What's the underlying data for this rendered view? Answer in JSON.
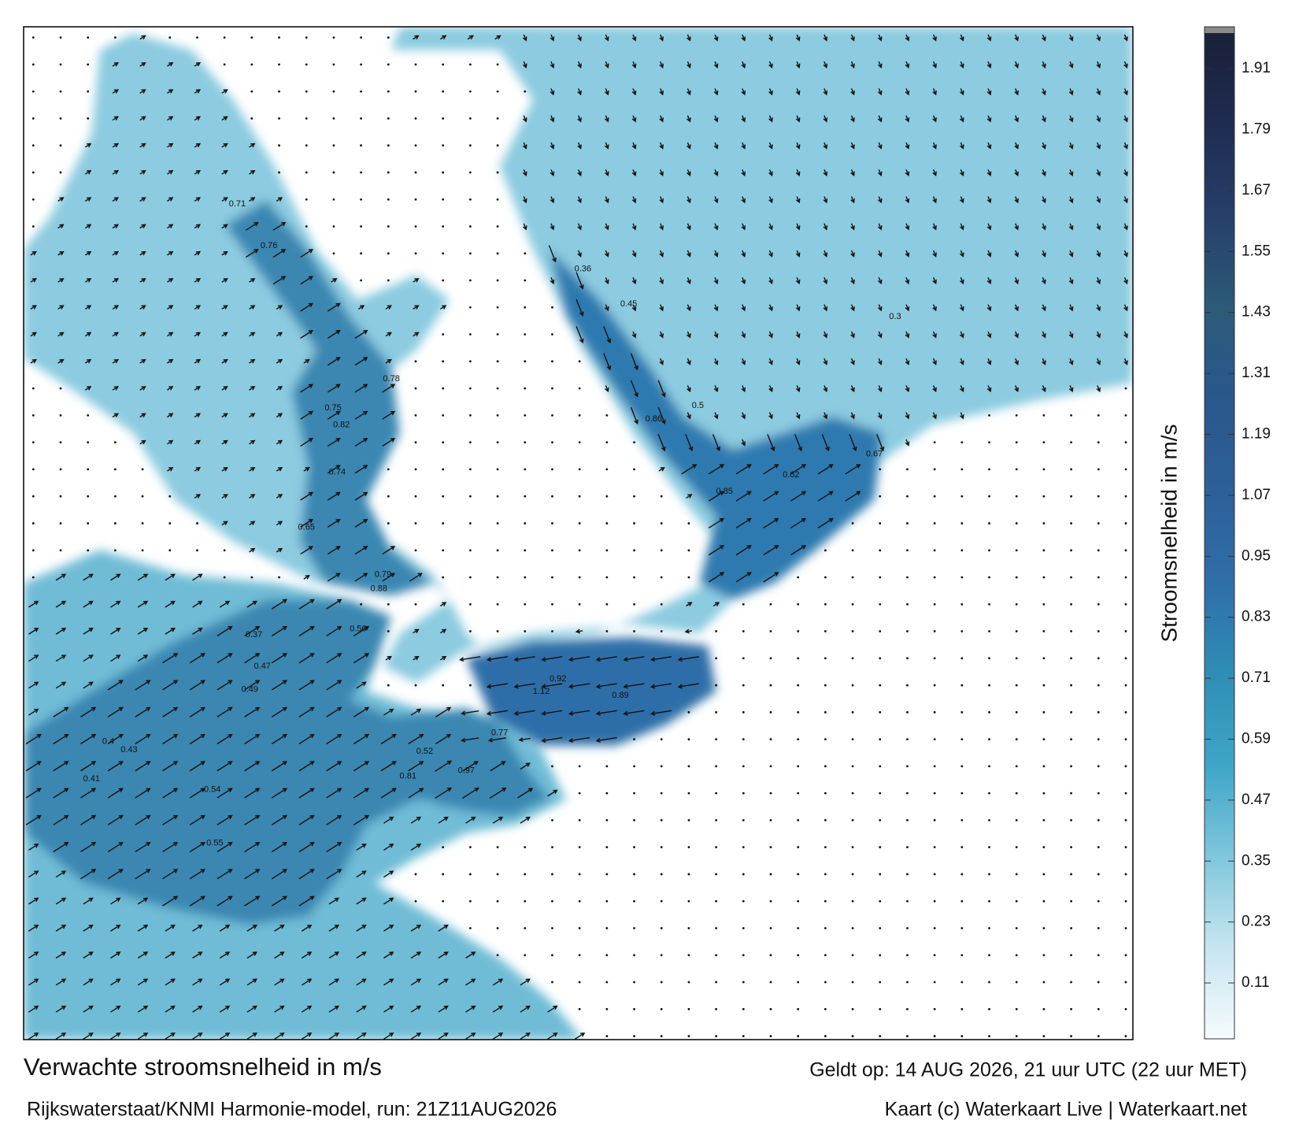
{
  "map": {
    "title": "Verwachte stroomsnelheid in m/s",
    "valid_time": "Geldt op: 14 AUG 2026, 21 uur UTC (22 uur MET)",
    "source": "Rijkswaterstaat/KNMI Harmonie-model, run: 21Z11AUG2026",
    "credit": "Kaart (c) Waterkaart Live | Waterkaart.net",
    "speed_labels": [
      "1.12",
      "0.97",
      "0.92",
      "0.89",
      "0.88",
      "0.86",
      "0.85",
      "0.82",
      "0.81",
      "0.79",
      "0.78",
      "0.77",
      "0.76",
      "0.75",
      "0.74",
      "0.71",
      "0.67",
      "0.65",
      "0.62",
      "0.56",
      "0.55",
      "0.54",
      "0.52",
      "0.5",
      "0.49",
      "0.47",
      "0.45",
      "0.43",
      "0.41",
      "0.4",
      "0.37",
      "0.36",
      "0.3"
    ]
  },
  "colorbar": {
    "label": "Stroomsnelheid in m/s",
    "lim": [
      0,
      1.98
    ],
    "ticks": [
      0.11,
      0.23,
      0.35,
      0.47,
      0.59,
      0.71,
      0.83,
      0.95,
      1.07,
      1.19,
      1.31,
      1.43,
      1.55,
      1.67,
      1.79,
      1.91
    ],
    "colors": [
      "#f6fbfd",
      "#c6e5f0",
      "#7fc6dc",
      "#3ea5c7",
      "#2f8db5",
      "#2f6ea8",
      "#2d5f98",
      "#2a578c",
      "#2c5a78",
      "#263f6a",
      "#1f2c52",
      "#1a2038"
    ]
  }
}
